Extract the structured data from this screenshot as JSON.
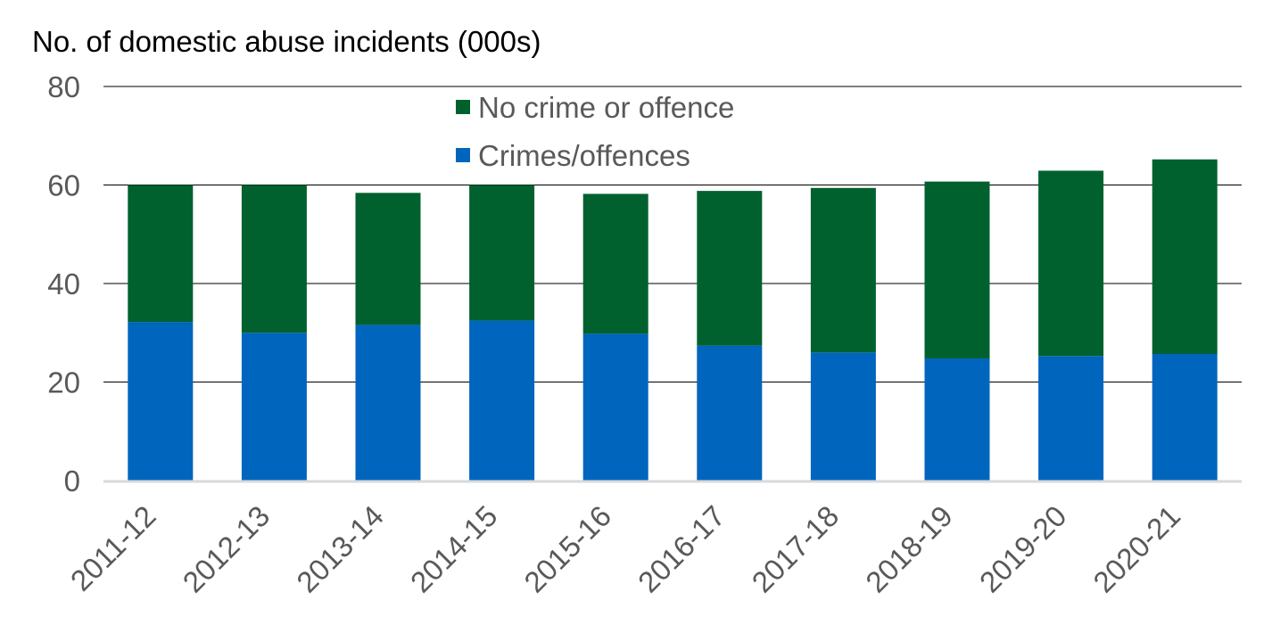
{
  "chart_data": {
    "type": "bar",
    "stacked": true,
    "ylabel": "No. of domestic abuse incidents (000s)",
    "ylim": [
      0,
      80
    ],
    "yticks": [
      0,
      20,
      40,
      60,
      80
    ],
    "grid": true,
    "legend_position": "top-center",
    "categories": [
      "2011-12",
      "2012-13",
      "2013-14",
      "2014-15",
      "2015-16",
      "2016-17",
      "2017-18",
      "2018-19",
      "2019-20",
      "2020-21"
    ],
    "series": [
      {
        "name": "Crimes/offences",
        "color": "#0065BD",
        "values": [
          32.2,
          30.0,
          31.6,
          32.5,
          29.8,
          27.4,
          26.0,
          24.8,
          25.3,
          25.7
        ]
      },
      {
        "name": "No crime or offence",
        "color": "#00612F",
        "values": [
          27.8,
          30.0,
          26.8,
          27.5,
          28.4,
          31.4,
          33.4,
          35.9,
          37.6,
          39.5
        ]
      }
    ],
    "legend_order": [
      "No crime or offence",
      "Crimes/offences"
    ]
  }
}
